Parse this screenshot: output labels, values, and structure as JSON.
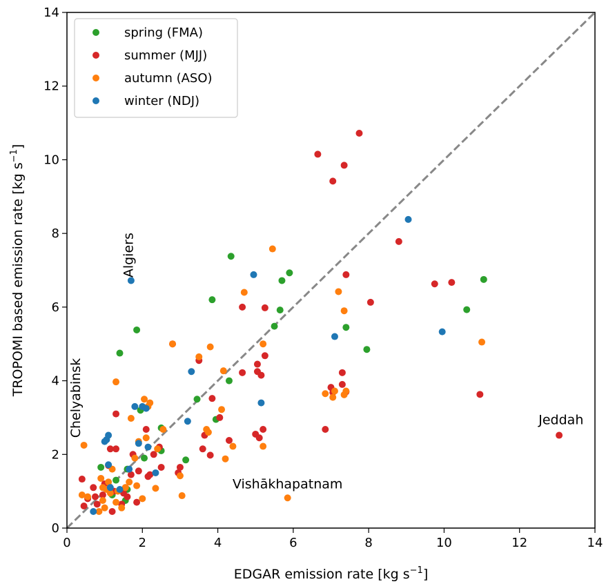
{
  "chart_data": {
    "type": "scatter",
    "xlabel": "EDGAR emission rate [kg s",
    "xlabel_sup": "−1",
    "xlabel_end": "]",
    "ylabel": "TROPOMI based emission rate [kg s",
    "ylabel_sup": "−1",
    "ylabel_end": "]",
    "xlim": [
      0,
      14
    ],
    "ylim": [
      0,
      14
    ],
    "x_ticks": [
      "0",
      "2",
      "4",
      "6",
      "8",
      "10",
      "12",
      "14"
    ],
    "y_ticks": [
      "0",
      "2",
      "4",
      "6",
      "8",
      "10",
      "12",
      "14"
    ],
    "grid": false,
    "legend_position": "top-left",
    "reference_line": {
      "style": "dashed",
      "color": "#888888",
      "from": [
        0,
        0
      ],
      "to": [
        14,
        14
      ]
    },
    "annotations": [
      {
        "text": "Algiers",
        "x": 1.75,
        "y": 6.8,
        "rotation": "vertical"
      },
      {
        "text": "Chelyabinsk",
        "x": 0.35,
        "y": 2.45,
        "rotation": "vertical"
      },
      {
        "text": "Vishākhapatnam",
        "x": 5.85,
        "y": 1.08,
        "rotation": "horizontal"
      },
      {
        "text": "Jeddah",
        "x": 13.1,
        "y": 2.82,
        "rotation": "horizontal"
      }
    ],
    "series": [
      {
        "name": "spring (FMA)",
        "color": "#2ca02c",
        "points": [
          [
            0.9,
            1.65
          ],
          [
            1.2,
            0.9
          ],
          [
            1.3,
            1.3
          ],
          [
            1.4,
            4.75
          ],
          [
            1.55,
            0.75
          ],
          [
            1.6,
            1.05
          ],
          [
            1.6,
            1.6
          ],
          [
            1.85,
            5.38
          ],
          [
            1.95,
            3.2
          ],
          [
            2.05,
            1.9
          ],
          [
            2.5,
            2.72
          ],
          [
            2.5,
            2.1
          ],
          [
            3.15,
            1.85
          ],
          [
            3.45,
            3.5
          ],
          [
            3.85,
            6.2
          ],
          [
            3.95,
            2.95
          ],
          [
            4.3,
            4.0
          ],
          [
            4.35,
            7.38
          ],
          [
            5.5,
            5.48
          ],
          [
            5.65,
            5.92
          ],
          [
            5.7,
            6.72
          ],
          [
            5.9,
            6.93
          ],
          [
            7.4,
            5.45
          ],
          [
            7.95,
            4.85
          ],
          [
            10.6,
            5.93
          ],
          [
            11.05,
            6.75
          ]
        ]
      },
      {
        "name": "summer (MJJ)",
        "color": "#d62728",
        "points": [
          [
            0.4,
            1.33
          ],
          [
            0.45,
            0.6
          ],
          [
            0.55,
            0.8
          ],
          [
            0.7,
            1.1
          ],
          [
            0.75,
            0.85
          ],
          [
            0.8,
            0.65
          ],
          [
            0.95,
            0.9
          ],
          [
            1.0,
            1.2
          ],
          [
            1.1,
            1.7
          ],
          [
            1.15,
            2.15
          ],
          [
            1.2,
            0.45
          ],
          [
            1.25,
            1.0
          ],
          [
            1.3,
            3.1
          ],
          [
            1.3,
            2.15
          ],
          [
            1.45,
            0.65
          ],
          [
            1.5,
            0.95
          ],
          [
            1.55,
            1.1
          ],
          [
            1.6,
            0.85
          ],
          [
            1.7,
            1.45
          ],
          [
            1.75,
            2.0
          ],
          [
            1.85,
            0.7
          ],
          [
            1.9,
            1.55
          ],
          [
            2.1,
            2.68
          ],
          [
            2.15,
            1.4
          ],
          [
            2.2,
            1.45
          ],
          [
            2.3,
            2.0
          ],
          [
            2.45,
            2.2
          ],
          [
            2.5,
            1.65
          ],
          [
            2.8,
            5.0
          ],
          [
            2.95,
            1.5
          ],
          [
            3.0,
            1.65
          ],
          [
            3.5,
            4.55
          ],
          [
            3.6,
            2.15
          ],
          [
            3.65,
            2.52
          ],
          [
            3.8,
            1.98
          ],
          [
            3.85,
            3.52
          ],
          [
            4.05,
            3.0
          ],
          [
            4.3,
            2.38
          ],
          [
            4.65,
            4.22
          ],
          [
            4.65,
            6.0
          ],
          [
            5.0,
            2.55
          ],
          [
            5.05,
            4.45
          ],
          [
            5.05,
            4.25
          ],
          [
            5.1,
            2.45
          ],
          [
            5.15,
            4.15
          ],
          [
            5.2,
            2.68
          ],
          [
            5.25,
            4.68
          ],
          [
            5.25,
            5.98
          ],
          [
            6.65,
            10.15
          ],
          [
            6.85,
            2.68
          ],
          [
            7.0,
            3.82
          ],
          [
            7.05,
            9.42
          ],
          [
            7.05,
            3.68
          ],
          [
            7.3,
            4.22
          ],
          [
            7.3,
            3.9
          ],
          [
            7.35,
            9.85
          ],
          [
            7.4,
            3.7
          ],
          [
            7.4,
            6.88
          ],
          [
            7.75,
            10.72
          ],
          [
            8.05,
            6.13
          ],
          [
            8.8,
            7.78
          ],
          [
            9.75,
            6.63
          ],
          [
            10.2,
            6.67
          ],
          [
            10.95,
            3.63
          ],
          [
            13.05,
            2.52
          ]
        ]
      },
      {
        "name": "autumn (ASO)",
        "color": "#ff7f0e",
        "points": [
          [
            0.4,
            0.9
          ],
          [
            0.45,
            2.25
          ],
          [
            0.55,
            0.85
          ],
          [
            0.85,
            0.45
          ],
          [
            0.9,
            1.35
          ],
          [
            0.95,
            0.75
          ],
          [
            0.95,
            1.1
          ],
          [
            1.0,
            0.55
          ],
          [
            1.05,
            1.05
          ],
          [
            1.1,
            1.25
          ],
          [
            1.15,
            0.95
          ],
          [
            1.2,
            1.6
          ],
          [
            1.3,
            0.7
          ],
          [
            1.3,
            3.97
          ],
          [
            1.35,
            1.0
          ],
          [
            1.45,
            0.55
          ],
          [
            1.55,
            1.1
          ],
          [
            1.65,
            1.25
          ],
          [
            1.7,
            2.98
          ],
          [
            1.8,
            1.9
          ],
          [
            1.85,
            1.15
          ],
          [
            1.9,
            2.35
          ],
          [
            2.0,
            0.8
          ],
          [
            2.05,
            3.5
          ],
          [
            2.1,
            2.45
          ],
          [
            2.15,
            3.3
          ],
          [
            2.2,
            3.4
          ],
          [
            2.35,
            1.08
          ],
          [
            2.4,
            2.15
          ],
          [
            2.55,
            2.68
          ],
          [
            2.8,
            5.0
          ],
          [
            3.0,
            1.42
          ],
          [
            3.05,
            0.88
          ],
          [
            3.5,
            4.65
          ],
          [
            3.7,
            2.68
          ],
          [
            3.75,
            2.6
          ],
          [
            3.8,
            4.92
          ],
          [
            4.1,
            3.22
          ],
          [
            4.15,
            4.27
          ],
          [
            4.2,
            1.88
          ],
          [
            4.4,
            2.22
          ],
          [
            4.7,
            6.4
          ],
          [
            5.2,
            5.0
          ],
          [
            5.2,
            2.22
          ],
          [
            5.45,
            7.58
          ],
          [
            5.85,
            0.82
          ],
          [
            6.85,
            3.65
          ],
          [
            7.05,
            3.55
          ],
          [
            7.1,
            3.72
          ],
          [
            7.2,
            6.42
          ],
          [
            7.35,
            3.62
          ],
          [
            7.35,
            5.9
          ],
          [
            7.4,
            3.72
          ],
          [
            11.0,
            5.05
          ]
        ]
      },
      {
        "name": "winter (NDJ)",
        "color": "#1f77b4",
        "points": [
          [
            0.7,
            0.45
          ],
          [
            1.0,
            2.35
          ],
          [
            1.05,
            2.4
          ],
          [
            1.1,
            2.52
          ],
          [
            1.1,
            1.72
          ],
          [
            1.15,
            1.1
          ],
          [
            1.4,
            1.05
          ],
          [
            1.65,
            1.6
          ],
          [
            1.7,
            6.72
          ],
          [
            1.8,
            3.3
          ],
          [
            1.9,
            2.3
          ],
          [
            2.0,
            3.3
          ],
          [
            2.1,
            3.25
          ],
          [
            2.15,
            2.2
          ],
          [
            2.35,
            1.5
          ],
          [
            3.2,
            2.9
          ],
          [
            3.3,
            4.25
          ],
          [
            4.95,
            6.88
          ],
          [
            5.15,
            3.4
          ],
          [
            7.1,
            5.2
          ],
          [
            9.05,
            8.38
          ],
          [
            9.95,
            5.33
          ]
        ]
      }
    ]
  }
}
